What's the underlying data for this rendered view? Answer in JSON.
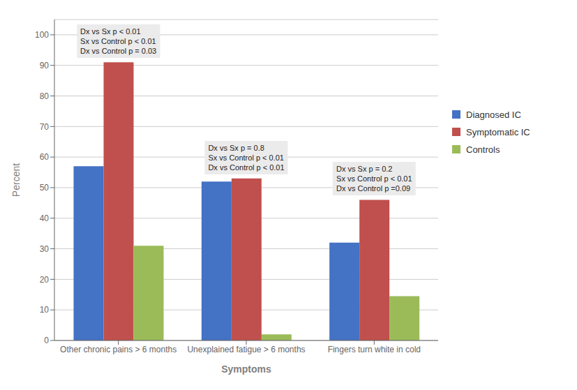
{
  "chart_data": {
    "type": "bar",
    "categories": [
      "Other chronic pains > 6 months",
      "Unexplained fatigue > 6 months",
      "Fingers turn white in cold"
    ],
    "series": [
      {
        "name": "Diagnosed IC",
        "color": "#4472C4",
        "values": [
          57,
          52,
          32
        ]
      },
      {
        "name": "Symptomatic IC",
        "color": "#C0504D",
        "values": [
          91,
          53,
          46
        ]
      },
      {
        "name": "Controls",
        "color": "#9BBB59",
        "values": [
          31,
          2,
          14.5
        ]
      }
    ],
    "xlabel": "Symptoms",
    "ylabel": "Percent",
    "ylim": [
      0,
      105
    ],
    "yticks": [
      0,
      10,
      20,
      30,
      40,
      50,
      60,
      70,
      80,
      90,
      100
    ],
    "grid": true,
    "legend": "right",
    "annotations": [
      "Dx vs Sx p < 0.01\nSx vs Control p < 0.01\nDx vs Control p = 0.03",
      "Dx vs Sx p = 0.8\nSx vs Control p < 0.01\nDx vs Control p < 0.01",
      "Dx vs Sx p = 0.2\nSx vs Control p < 0.01\nDx vs Control p =0.09"
    ]
  }
}
